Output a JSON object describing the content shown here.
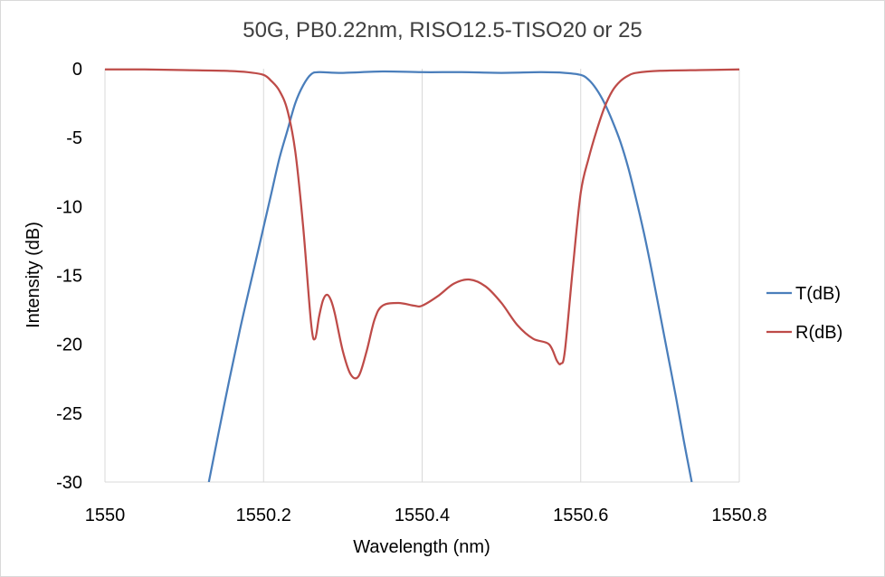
{
  "chart_data": {
    "type": "line",
    "title": "50G, PB0.22nm, RISO12.5-TISO20 or 25",
    "xlabel": "Wavelength (nm)",
    "ylabel": "Intensity (dB)",
    "xlim": [
      1550,
      1550.8
    ],
    "ylim": [
      -30,
      0
    ],
    "xticks": [
      1550,
      1550.2,
      1550.4,
      1550.6,
      1550.8
    ],
    "xtick_labels": [
      "1550",
      "1550.2",
      "1550.4",
      "1550.6",
      "1550.8"
    ],
    "yticks": [
      0,
      -5,
      -10,
      -15,
      -20,
      -25,
      -30
    ],
    "ytick_labels": [
      "0",
      "-5",
      "-10",
      "-15",
      "-20",
      "-25",
      "-30"
    ],
    "grid": "vertical",
    "legend_position": "right",
    "series": [
      {
        "name": "T(dB)",
        "color": "#4a7ebb",
        "x": [
          1550.131,
          1550.15,
          1550.17,
          1550.19,
          1550.2,
          1550.21,
          1550.22,
          1550.23,
          1550.24,
          1550.25,
          1550.26,
          1550.27,
          1550.3,
          1550.35,
          1550.4,
          1550.45,
          1550.5,
          1550.55,
          1550.58,
          1550.6,
          1550.61,
          1550.62,
          1550.63,
          1550.64,
          1550.65,
          1550.66,
          1550.67,
          1550.68,
          1550.69,
          1550.7,
          1550.71,
          1550.72,
          1550.73,
          1550.74
        ],
        "y": [
          -30,
          -24.5,
          -19,
          -14,
          -11.5,
          -9,
          -6.5,
          -4.5,
          -2.5,
          -1.2,
          -0.4,
          -0.25,
          -0.3,
          -0.2,
          -0.25,
          -0.25,
          -0.3,
          -0.25,
          -0.3,
          -0.45,
          -0.8,
          -1.5,
          -2.5,
          -3.8,
          -5.3,
          -7.2,
          -9.5,
          -12,
          -14.8,
          -17.8,
          -20.8,
          -23.8,
          -27,
          -30
        ]
      },
      {
        "name": "R(dB)",
        "color": "#be4b48",
        "x": [
          1550,
          1550.05,
          1550.1,
          1550.15,
          1550.18,
          1550.2,
          1550.21,
          1550.22,
          1550.23,
          1550.24,
          1550.25,
          1550.26,
          1550.265,
          1550.27,
          1550.275,
          1550.28,
          1550.285,
          1550.29,
          1550.3,
          1550.31,
          1550.32,
          1550.33,
          1550.34,
          1550.35,
          1550.37,
          1550.39,
          1550.4,
          1550.42,
          1550.44,
          1550.46,
          1550.48,
          1550.5,
          1550.52,
          1550.54,
          1550.56,
          1550.57,
          1550.575,
          1550.58,
          1550.59,
          1550.6,
          1550.61,
          1550.62,
          1550.63,
          1550.64,
          1550.65,
          1550.66,
          1550.67,
          1550.7,
          1550.75,
          1550.8
        ],
        "y": [
          -0.05,
          -0.05,
          -0.1,
          -0.15,
          -0.25,
          -0.45,
          -0.9,
          -1.6,
          -3.0,
          -6.0,
          -11.5,
          -18.5,
          -19.6,
          -18.0,
          -16.8,
          -16.4,
          -16.8,
          -17.8,
          -20.5,
          -22.2,
          -22.3,
          -20.5,
          -18.2,
          -17.2,
          -17.0,
          -17.2,
          -17.2,
          -16.5,
          -15.6,
          -15.3,
          -15.8,
          -17.0,
          -18.6,
          -19.6,
          -20.0,
          -21.2,
          -21.4,
          -20.5,
          -14.5,
          -9.0,
          -6.5,
          -4.5,
          -2.8,
          -1.6,
          -0.9,
          -0.5,
          -0.3,
          -0.15,
          -0.1,
          -0.05
        ]
      }
    ]
  }
}
